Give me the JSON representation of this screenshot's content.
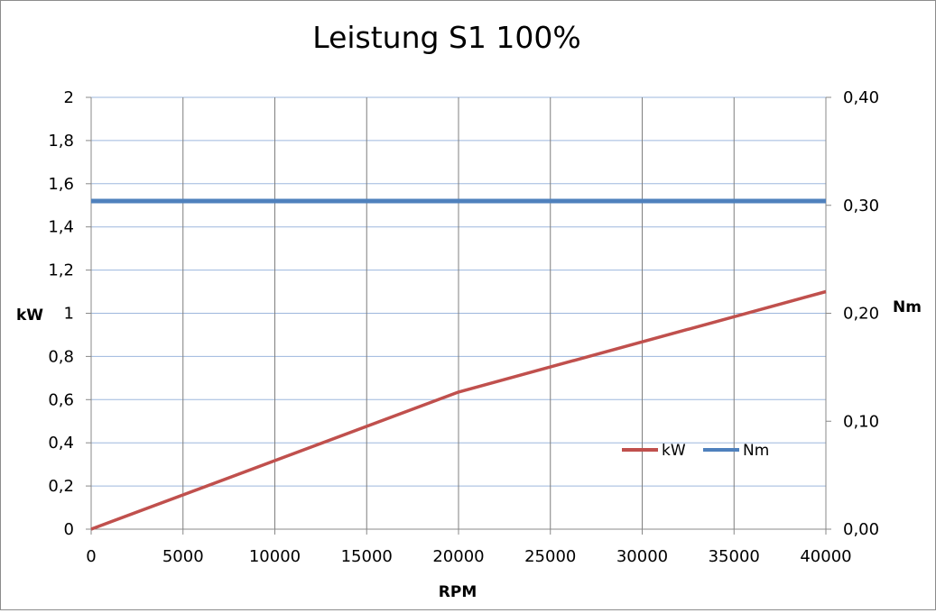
{
  "chart_data": {
    "type": "line",
    "title": "Leistung S1 100%",
    "xlabel": "RPM",
    "ylabel": "kW",
    "y2label": "Nm",
    "xlim": [
      0,
      40000
    ],
    "ylim": [
      0,
      2
    ],
    "y2lim": [
      0,
      0.4
    ],
    "x_ticks": [
      "0",
      "5000",
      "10000",
      "15000",
      "20000",
      "25000",
      "30000",
      "35000",
      "40000"
    ],
    "y_ticks": [
      "0",
      "0,2",
      "0,4",
      "0,6",
      "0,8",
      "1",
      "1,2",
      "1,4",
      "1,6",
      "1,8",
      "2"
    ],
    "y2_ticks": [
      "0,00",
      "0,10",
      "0,20",
      "0,30",
      "0,40"
    ],
    "grid": true,
    "legend_position": "right-inside",
    "series": [
      {
        "name": "kW",
        "axis": "left",
        "color": "#c0504d",
        "x": [
          0,
          20000,
          40000
        ],
        "y": [
          0,
          0.635,
          1.1
        ]
      },
      {
        "name": "Nm",
        "axis": "right",
        "color": "#4f81bd",
        "x": [
          0,
          40000
        ],
        "y": [
          0.304,
          0.304
        ]
      }
    ]
  }
}
